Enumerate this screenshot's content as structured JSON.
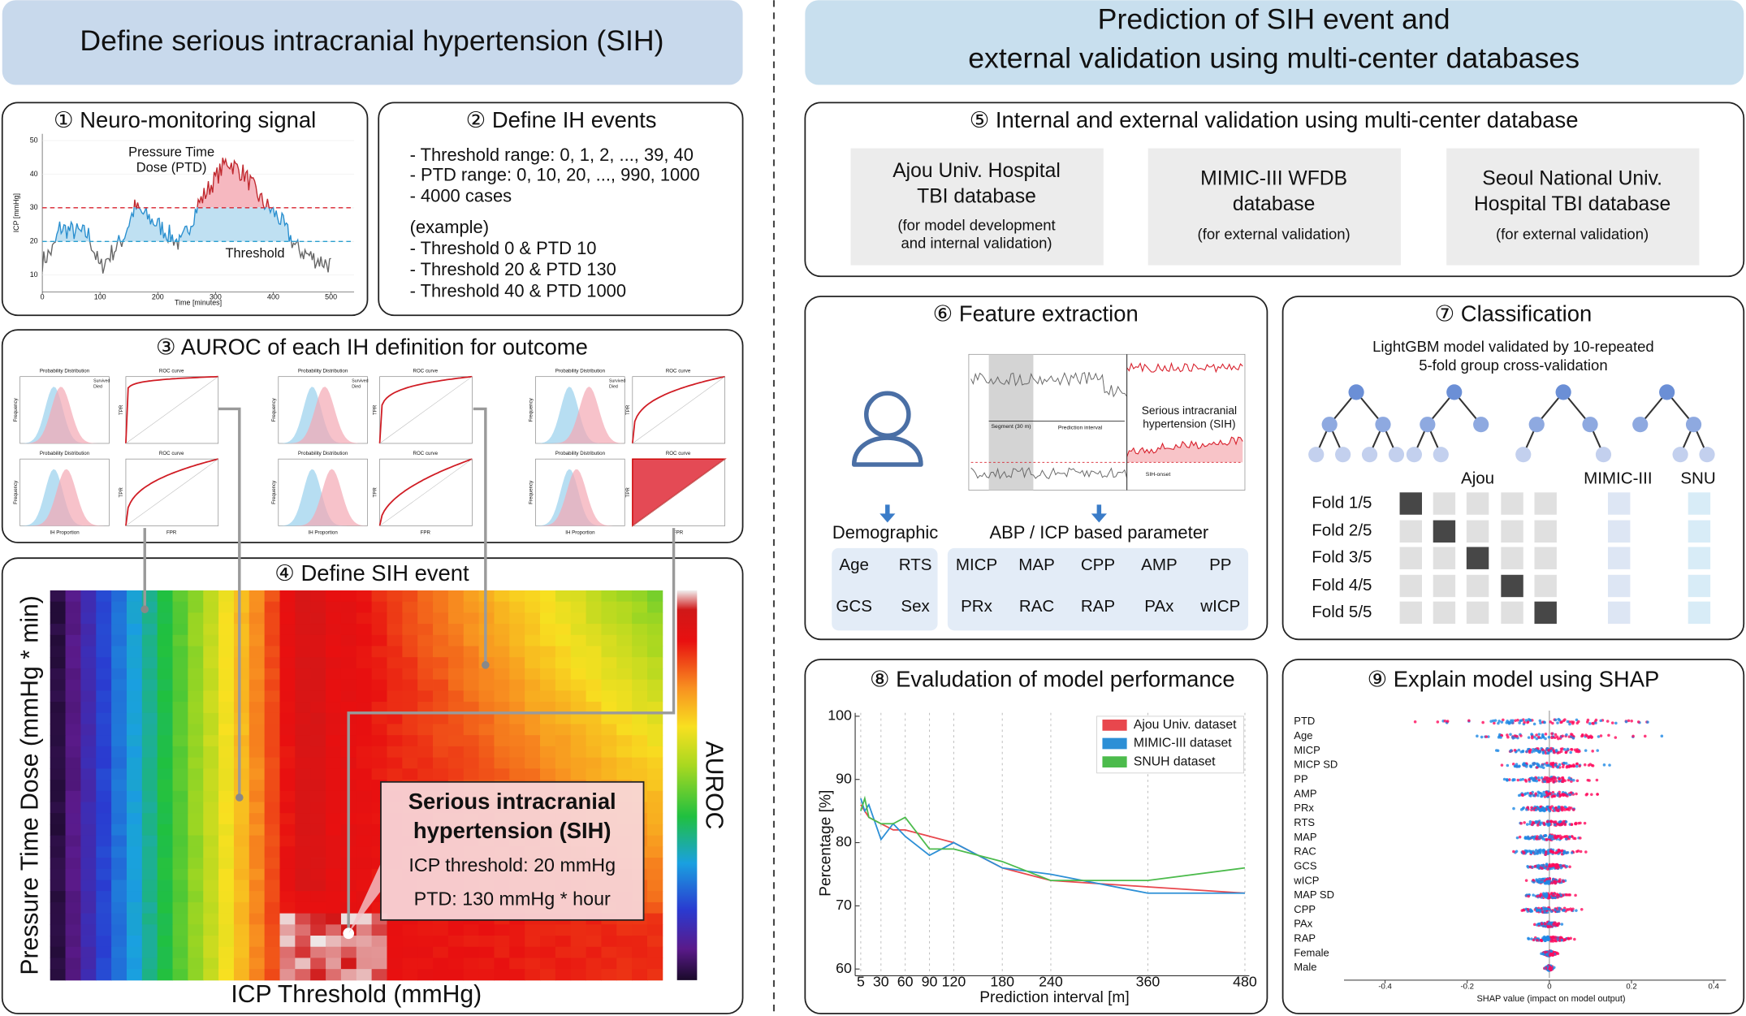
{
  "left_header": {
    "title": "Define serious intracranial hypertension (SIH)"
  },
  "right_header": {
    "title_lines": [
      "Prediction of SIH event and",
      "external validation using multi-center databases"
    ]
  },
  "p1": {
    "title": "① Neuro-monitoring signal",
    "y_label": "ICP [mmHg]",
    "x_label": "Time [minutes]",
    "ylim": [
      0,
      52
    ],
    "yticks": [
      10,
      20,
      30,
      40,
      50
    ],
    "xlim": [
      0,
      540
    ],
    "xticks": [
      0,
      100,
      200,
      300,
      400,
      500
    ],
    "ptd_label": [
      "Pressure Time",
      "Dose (PTD)"
    ],
    "threshold_label": "Threshold"
  },
  "p2": {
    "title": "② Define IH events",
    "lines": [
      "- Threshold range: 0, 1, 2, ...,  39, 40",
      "- PTD range: 0, 10, 20, ..., 990, 1000",
      "- 4000 cases"
    ],
    "example_title": "(example)",
    "examples": [
      "- Threshold 0 & PTD 10",
      "- Threshold 20 & PTD 130",
      "- Threshold 40 & PTD 1000"
    ]
  },
  "p3": {
    "title": "③ AUROC of each IH definition for outcome",
    "dist_title": "Probability Distribution",
    "roc_title": "ROC curve",
    "dist_y": "Frequency",
    "dist_x": "IH Proportion",
    "roc_y": "TPR",
    "roc_x": "FPR",
    "legend": [
      "Survived",
      "Died"
    ]
  },
  "p4": {
    "title": "④ Define SIH event",
    "y_label": "Pressure Time Dose (mmHg * min)",
    "x_label": "ICP Threshold (mmHg)",
    "colorbar_label": "AUROC",
    "box_title": [
      "Serious intracranial",
      "hypertension (SIH)"
    ],
    "box_lines": [
      "ICP threshold: 20 mmHg",
      "PTD: 130 mmHg * hour"
    ]
  },
  "p5": {
    "title": "⑤ Internal and external validation using multi-center database",
    "databases": [
      {
        "name": [
          "Ajou Univ. Hospital",
          "TBI database"
        ],
        "note": [
          "(for model development",
          "and internal validation)"
        ]
      },
      {
        "name": [
          "MIMIC-III WFDB",
          "database"
        ],
        "note": [
          "(for external validation)"
        ]
      },
      {
        "name": [
          "Seoul National Univ.",
          "Hospital TBI database"
        ],
        "note": [
          "(for external validation)"
        ]
      }
    ]
  },
  "p6": {
    "title": "⑥ Feature extraction",
    "sih_label": [
      "Serious intracranial",
      "hypertension (SIH)"
    ],
    "segment_label": "Segment (30 m)",
    "interval_label": "Prediction interval",
    "onset_label": "SIH-onset",
    "demographic_title": "Demographic",
    "demographic": [
      "Age",
      "RTS",
      "GCS",
      "Sex"
    ],
    "param_title": "ABP / ICP based parameter",
    "params": [
      "MICP",
      "MAP",
      "CPP",
      "AMP",
      "PP",
      "PRx",
      "RAC",
      "RAP",
      "PAx",
      "wICP"
    ]
  },
  "p7": {
    "title": "⑦ Classification",
    "subtitle": [
      "LightGBM model validated by 10-repeated",
      "5-fold group cross-validation"
    ],
    "groups": [
      "Ajou",
      "MIMIC-III",
      "SNU"
    ],
    "folds": [
      "Fold 1/5",
      "Fold 2/5",
      "Fold 3/5",
      "Fold 4/5",
      "Fold 5/5"
    ]
  },
  "p8": {
    "title": "⑧ Evaludation of model performance",
    "x_label": "Prediction interval [m]",
    "y_label": "Percentage [%]",
    "x": [
      5,
      10,
      15,
      30,
      45,
      60,
      90,
      120,
      180,
      240,
      360,
      480
    ],
    "xlim": [
      5,
      480
    ],
    "xticks": [
      5,
      30,
      60,
      90,
      120,
      180,
      240,
      360,
      480
    ],
    "ylim": [
      60,
      100
    ],
    "yticks": [
      60,
      70,
      80,
      90,
      100
    ],
    "series": [
      {
        "name": "Ajou Univ. dataset",
        "color": "#e8474d",
        "values": [
          86,
          85,
          84,
          83,
          82,
          82,
          81,
          80,
          76,
          74,
          73,
          72
        ]
      },
      {
        "name": "MIMIC-III dataset",
        "color": "#2c8fd6",
        "values": [
          87,
          85,
          86,
          80.5,
          83,
          81,
          78,
          80,
          76,
          75,
          72,
          72
        ]
      },
      {
        "name": "SNUH dataset",
        "color": "#4cbb4c",
        "values": [
          85,
          87,
          84,
          83,
          83,
          84,
          79,
          79,
          77,
          74,
          74,
          76
        ]
      }
    ]
  },
  "p9": {
    "title": "⑨ Explain model using SHAP",
    "features": [
      "PTD",
      "Age",
      "MICP",
      "MICP SD",
      "PP",
      "AMP",
      "PRx",
      "RTS",
      "MAP",
      "RAC",
      "GCS",
      "wICP",
      "MAP SD",
      "CPP",
      "PAx",
      "RAP",
      "Female",
      "Male"
    ],
    "x_label": "SHAP value (impact on model output)",
    "xlim": [
      -0.5,
      0.43
    ],
    "xticks": [
      -0.4,
      -0.2,
      0,
      0.2,
      0.4
    ]
  }
}
